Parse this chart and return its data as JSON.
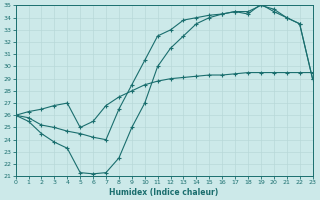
{
  "xlabel": "Humidex (Indice chaleur)",
  "bg_color": "#cce9e9",
  "grid_color": "#b8d8d8",
  "line_color": "#1a6e6e",
  "xlim": [
    0,
    23
  ],
  "ylim": [
    21,
    35
  ],
  "xticks": [
    0,
    1,
    2,
    3,
    4,
    5,
    6,
    7,
    8,
    9,
    10,
    11,
    12,
    13,
    14,
    15,
    16,
    17,
    18,
    19,
    20,
    21,
    22,
    23
  ],
  "yticks": [
    21,
    22,
    23,
    24,
    25,
    26,
    27,
    28,
    29,
    30,
    31,
    32,
    33,
    34,
    35
  ],
  "line1_x": [
    0,
    1,
    2,
    3,
    4,
    5,
    6,
    7,
    8,
    9,
    10,
    11,
    12,
    13,
    14,
    15,
    16,
    17,
    18,
    19,
    20,
    21,
    22,
    23
  ],
  "line1_y": [
    26.0,
    25.5,
    24.5,
    23.8,
    23.3,
    21.3,
    21.2,
    21.3,
    22.5,
    25.0,
    27.0,
    30.0,
    31.5,
    32.5,
    33.5,
    34.0,
    34.3,
    34.5,
    34.5,
    35.0,
    34.7,
    34.0,
    33.5,
    29.0
  ],
  "line2_x": [
    0,
    1,
    2,
    3,
    4,
    5,
    6,
    7,
    8,
    9,
    10,
    11,
    12,
    13,
    14,
    15,
    16,
    17,
    18,
    19,
    20,
    21,
    22,
    23
  ],
  "line2_y": [
    26.0,
    25.8,
    25.2,
    25.0,
    24.7,
    24.5,
    24.2,
    24.0,
    26.5,
    28.5,
    30.5,
    32.5,
    33.0,
    33.8,
    34.0,
    34.2,
    34.3,
    34.5,
    34.3,
    35.1,
    34.5,
    34.0,
    33.5,
    29.0
  ],
  "line3_x": [
    0,
    1,
    2,
    3,
    4,
    5,
    6,
    7,
    8,
    9,
    10,
    11,
    12,
    13,
    14,
    15,
    16,
    17,
    18,
    19,
    20,
    21,
    22,
    23
  ],
  "line3_y": [
    26.0,
    26.3,
    26.5,
    26.8,
    27.0,
    25.0,
    25.5,
    26.8,
    27.5,
    28.0,
    28.5,
    28.8,
    29.0,
    29.1,
    29.2,
    29.3,
    29.3,
    29.4,
    29.5,
    29.5,
    29.5,
    29.5,
    29.5,
    29.5
  ]
}
